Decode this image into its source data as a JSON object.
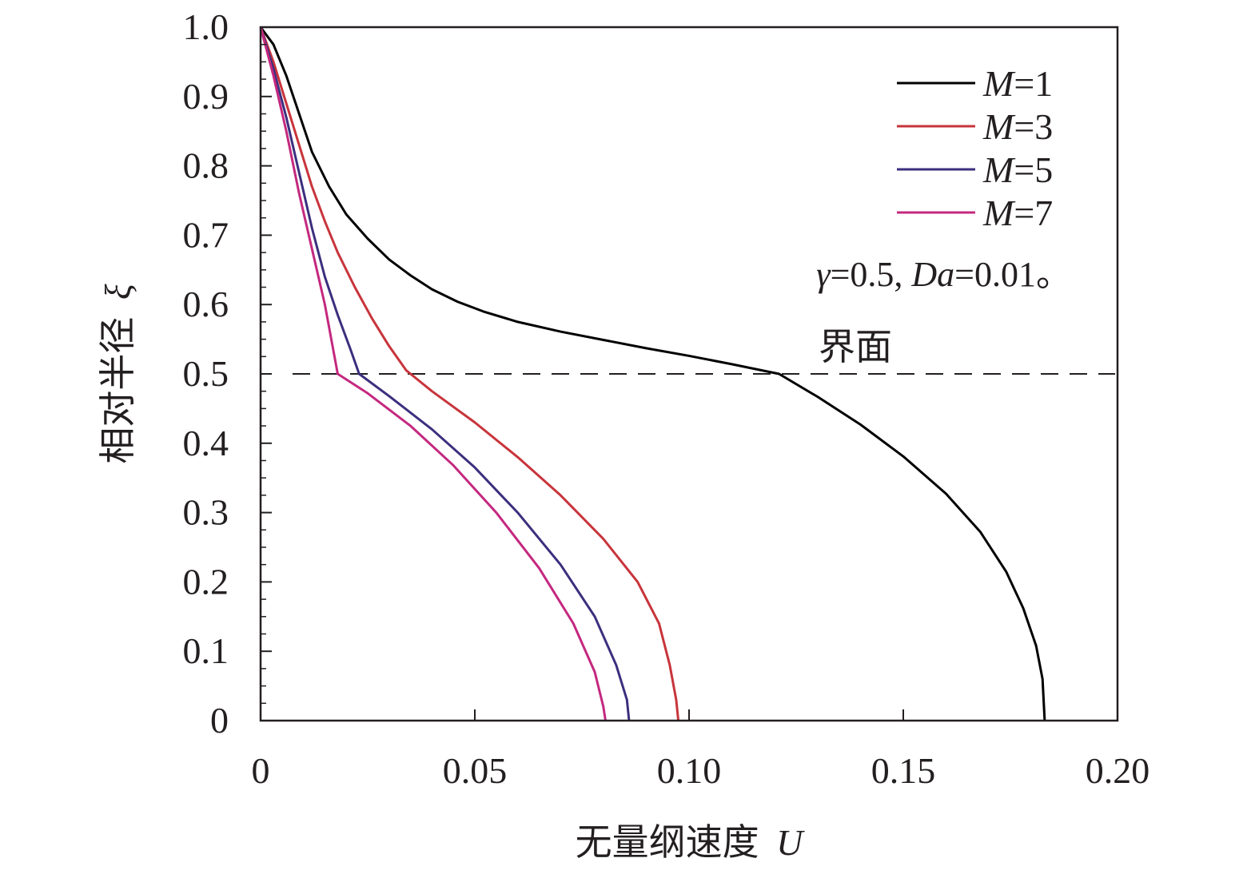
{
  "chart_data": {
    "type": "line",
    "xlabel": "无量纲速度",
    "xlabel_symbol": "U",
    "ylabel": "相对半径",
    "ylabel_symbol": "ξ",
    "xlim": [
      0,
      0.2
    ],
    "ylim": [
      0,
      1.0
    ],
    "x_ticks": [
      0,
      0.05,
      0.1,
      0.15,
      0.2
    ],
    "x_tick_labels": [
      "0",
      "0.05",
      "0.10",
      "0.15",
      "0.20"
    ],
    "y_ticks": [
      0,
      0.1,
      0.2,
      0.3,
      0.4,
      0.5,
      0.6,
      0.7,
      0.8,
      0.9,
      1.0
    ],
    "y_tick_labels": [
      "0",
      "0.1",
      "0.2",
      "0.3",
      "0.4",
      "0.5",
      "0.6",
      "0.7",
      "0.8",
      "0.9",
      "1.0"
    ],
    "grid": false,
    "legend_position": "top-right",
    "annotation": {
      "parts": [
        {
          "text": "γ",
          "italic": true
        },
        {
          "text": "=0.5, ",
          "italic": false
        },
        {
          "text": "Da",
          "italic": true
        },
        {
          "text": "=0.01。",
          "italic": false
        }
      ]
    },
    "interface": {
      "y": 0.5,
      "label": "界面",
      "style": "dashed"
    },
    "series": [
      {
        "name": "M=1",
        "name_var": "M",
        "name_rest": "=1",
        "color": "#000000",
        "points": [
          [
            0.0,
            1.0
          ],
          [
            0.003,
            0.975
          ],
          [
            0.006,
            0.93
          ],
          [
            0.009,
            0.875
          ],
          [
            0.012,
            0.82
          ],
          [
            0.016,
            0.77
          ],
          [
            0.02,
            0.73
          ],
          [
            0.025,
            0.695
          ],
          [
            0.03,
            0.665
          ],
          [
            0.035,
            0.642
          ],
          [
            0.04,
            0.622
          ],
          [
            0.046,
            0.604
          ],
          [
            0.052,
            0.59
          ],
          [
            0.06,
            0.575
          ],
          [
            0.07,
            0.561
          ],
          [
            0.08,
            0.549
          ],
          [
            0.09,
            0.537
          ],
          [
            0.1,
            0.526
          ],
          [
            0.11,
            0.514
          ],
          [
            0.121,
            0.5
          ],
          [
            0.13,
            0.467
          ],
          [
            0.14,
            0.427
          ],
          [
            0.15,
            0.381
          ],
          [
            0.16,
            0.327
          ],
          [
            0.168,
            0.272
          ],
          [
            0.174,
            0.215
          ],
          [
            0.178,
            0.162
          ],
          [
            0.181,
            0.108
          ],
          [
            0.1825,
            0.06
          ],
          [
            0.183,
            0.0
          ]
        ]
      },
      {
        "name": "M=3",
        "name_var": "M",
        "name_rest": "=3",
        "color": "#c8343b",
        "points": [
          [
            0.0,
            1.0
          ],
          [
            0.003,
            0.95
          ],
          [
            0.006,
            0.89
          ],
          [
            0.009,
            0.83
          ],
          [
            0.012,
            0.77
          ],
          [
            0.015,
            0.72
          ],
          [
            0.018,
            0.675
          ],
          [
            0.022,
            0.625
          ],
          [
            0.026,
            0.58
          ],
          [
            0.03,
            0.54
          ],
          [
            0.034,
            0.505
          ],
          [
            0.035,
            0.5
          ],
          [
            0.04,
            0.475
          ],
          [
            0.05,
            0.43
          ],
          [
            0.06,
            0.38
          ],
          [
            0.07,
            0.325
          ],
          [
            0.08,
            0.262
          ],
          [
            0.088,
            0.2
          ],
          [
            0.093,
            0.14
          ],
          [
            0.0955,
            0.08
          ],
          [
            0.097,
            0.03
          ],
          [
            0.0975,
            0.0
          ]
        ]
      },
      {
        "name": "M=5",
        "name_var": "M",
        "name_rest": "=5",
        "color": "#3b2f7e",
        "points": [
          [
            0.0,
            1.0
          ],
          [
            0.003,
            0.94
          ],
          [
            0.006,
            0.87
          ],
          [
            0.009,
            0.79
          ],
          [
            0.012,
            0.71
          ],
          [
            0.015,
            0.64
          ],
          [
            0.018,
            0.585
          ],
          [
            0.021,
            0.535
          ],
          [
            0.023,
            0.5
          ],
          [
            0.03,
            0.468
          ],
          [
            0.04,
            0.42
          ],
          [
            0.05,
            0.365
          ],
          [
            0.06,
            0.3
          ],
          [
            0.07,
            0.225
          ],
          [
            0.078,
            0.15
          ],
          [
            0.083,
            0.08
          ],
          [
            0.0855,
            0.03
          ],
          [
            0.086,
            0.0
          ]
        ]
      },
      {
        "name": "M=7",
        "name_var": "M",
        "name_rest": "=7",
        "color": "#c4287f",
        "points": [
          [
            0.0,
            1.0
          ],
          [
            0.003,
            0.93
          ],
          [
            0.006,
            0.85
          ],
          [
            0.009,
            0.76
          ],
          [
            0.012,
            0.68
          ],
          [
            0.015,
            0.6
          ],
          [
            0.018,
            0.5
          ],
          [
            0.025,
            0.472
          ],
          [
            0.035,
            0.425
          ],
          [
            0.045,
            0.368
          ],
          [
            0.055,
            0.3
          ],
          [
            0.065,
            0.22
          ],
          [
            0.073,
            0.14
          ],
          [
            0.078,
            0.07
          ],
          [
            0.08,
            0.02
          ],
          [
            0.0805,
            0.0
          ]
        ]
      }
    ]
  }
}
